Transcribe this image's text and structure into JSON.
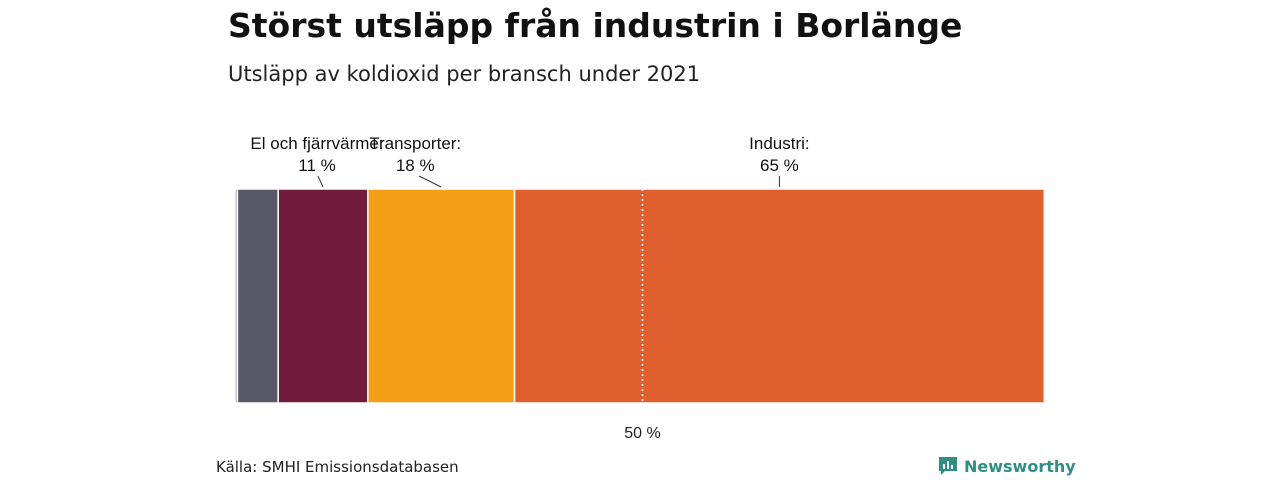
{
  "header": {
    "title": "Störst utsläpp från industrin i Borlänge",
    "subtitle": "Utsläpp av koldioxid per bransch under 2021"
  },
  "chart_data": {
    "type": "bar",
    "orientation": "stacked-horizontal-100",
    "unit": "%",
    "xlim": [
      0,
      100
    ],
    "segments": [
      {
        "name": "",
        "value": 0.3,
        "color": "#9a9aa0",
        "labeled": false
      },
      {
        "name": "",
        "value": 5,
        "color": "#575766",
        "labeled": false
      },
      {
        "name": "El och fjärrvärme:",
        "value": 11,
        "label": "11 %",
        "color": "#721b3c",
        "labeled": true
      },
      {
        "name": "Transporter:",
        "value": 18,
        "label": "18 %",
        "color": "#f59f17",
        "labeled": true
      },
      {
        "name": "Industri:",
        "value": 65,
        "label": "65 %",
        "color": "#df5f2e",
        "labeled": true
      }
    ],
    "reference_line": {
      "value": 50,
      "label": "50 %",
      "style": "dotted"
    }
  },
  "footer": {
    "source": "Källa: SMHI Emissionsdatabasen",
    "brand": "Newsworthy",
    "brand_color": "#2f8f83"
  }
}
